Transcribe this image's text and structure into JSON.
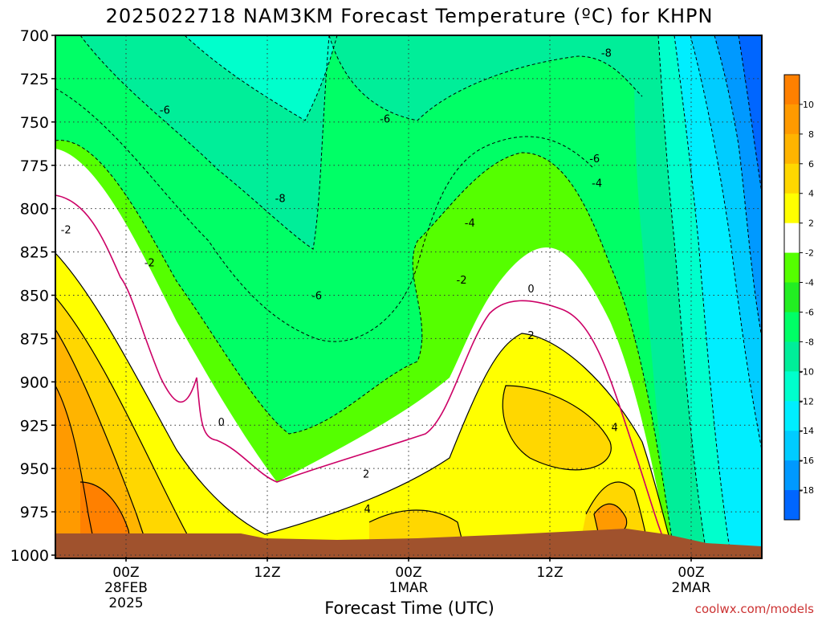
{
  "chart_data": {
    "type": "heatmap",
    "title": "2025022718 NAM3KM Forecast Temperature (ºC) for KHPN",
    "xlabel": "Forecast Time (UTC)",
    "ylabel": "",
    "x_ticks": [
      {
        "hours": 6,
        "lines": [
          "00Z",
          "28FEB",
          "2025"
        ]
      },
      {
        "hours": 18,
        "lines": [
          "12Z"
        ]
      },
      {
        "hours": 30,
        "lines": [
          "00Z",
          "1MAR"
        ]
      },
      {
        "hours": 42,
        "lines": [
          "12Z"
        ]
      },
      {
        "hours": 54,
        "lines": [
          "00Z",
          "2MAR"
        ]
      }
    ],
    "x_range_hours": [
      0,
      60
    ],
    "y_ticks": [
      "700",
      "725",
      "750",
      "775",
      "800",
      "825",
      "850",
      "875",
      "900",
      "925",
      "950",
      "975",
      "1000"
    ],
    "y_range_hpa": [
      700,
      1000
    ],
    "grid": true,
    "colorbar": {
      "labels": [
        "10",
        "8",
        "6",
        "4",
        "2",
        "-2",
        "-4",
        "-6",
        "-8",
        "-10",
        "-12",
        "-14",
        "-16",
        "-18"
      ],
      "colors": [
        "#ff8000",
        "#ff9a00",
        "#ffb400",
        "#ffd700",
        "#ffff00",
        "#ffffff",
        "#55ff00",
        "#22ee22",
        "#00ff66",
        "#00ee99",
        "#00ffcc",
        "#00eeff",
        "#00ccff",
        "#0099ff",
        "#0066ff"
      ]
    },
    "contour_labels": [
      {
        "text": "-8",
        "hours": 46.8,
        "hpa": 710
      },
      {
        "text": "-6",
        "hours": 9.3,
        "hpa": 743
      },
      {
        "text": "-6",
        "hours": 28.0,
        "hpa": 748
      },
      {
        "text": "-6",
        "hours": 45.8,
        "hpa": 771
      },
      {
        "text": "-8",
        "hours": 19.1,
        "hpa": 794
      },
      {
        "text": "-4",
        "hours": 46.0,
        "hpa": 785
      },
      {
        "text": "-4",
        "hours": 35.2,
        "hpa": 808
      },
      {
        "text": "-2",
        "hours": 0.9,
        "hpa": 812
      },
      {
        "text": "-2",
        "hours": 8.0,
        "hpa": 831
      },
      {
        "text": "-2",
        "hours": 34.5,
        "hpa": 841
      },
      {
        "text": "-6",
        "hours": 22.2,
        "hpa": 850
      },
      {
        "text": "0",
        "hours": 40.4,
        "hpa": 846
      },
      {
        "text": "2",
        "hours": 40.4,
        "hpa": 873
      },
      {
        "text": "0",
        "hours": 14.1,
        "hpa": 923
      },
      {
        "text": "4",
        "hours": 47.5,
        "hpa": 926
      },
      {
        "text": "2",
        "hours": 26.4,
        "hpa": 953
      },
      {
        "text": "4",
        "hours": 26.5,
        "hpa": 973
      }
    ]
  },
  "credit": "coolwx.com/models",
  "colors": {
    "ground": "#a0522d",
    "frame": "#000000",
    "zero_line": "#cc0066"
  }
}
